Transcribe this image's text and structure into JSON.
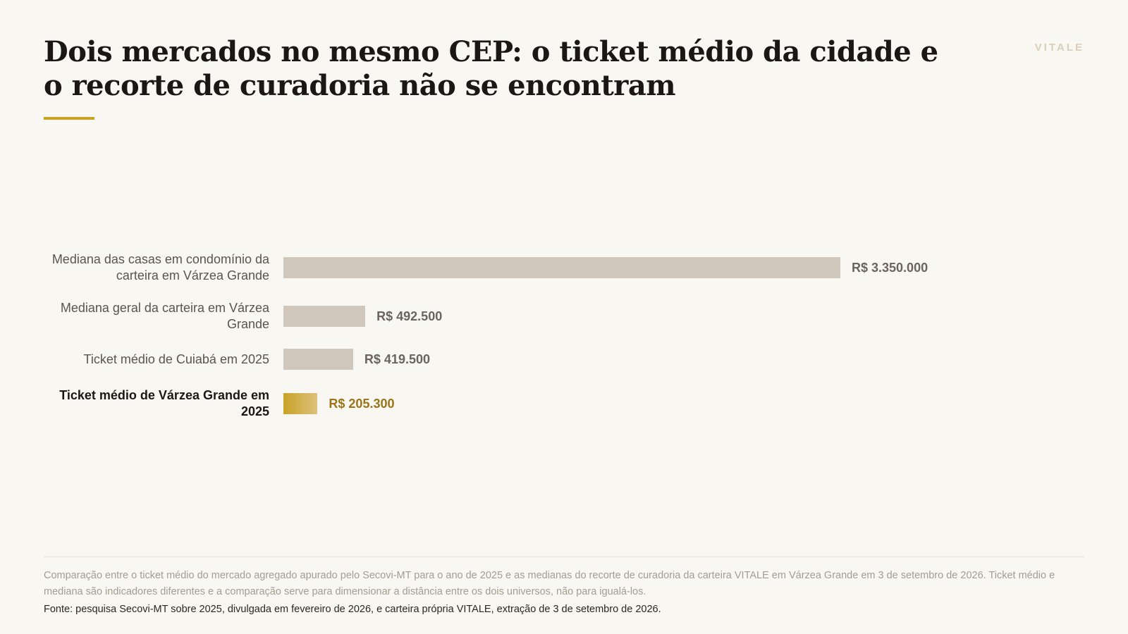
{
  "header": {
    "title": "Dois mercados no mesmo CEP: o ticket médio da cidade e o recorte de curadoria não se encontram",
    "brand": "VITALE",
    "accent_color": "#c9a227"
  },
  "chart_data": {
    "type": "bar",
    "orientation": "horizontal",
    "categories": [
      "Mediana das casas em condomínio da carteira em Várzea Grande",
      "Mediana geral da carteira em Várzea Grande",
      "Ticket médio de Cuiabá em 2025",
      "Ticket médio de Várzea Grande em 2025"
    ],
    "values": [
      3350000,
      492500,
      419500,
      205300
    ],
    "value_labels": [
      "R$ 3.350.000",
      "R$ 492.500",
      "R$ 419.500",
      "R$ 205.300"
    ],
    "highlight_index": 3,
    "bar_color": "#d0c8bc",
    "highlight_color": "#c9a227",
    "grid": false
  },
  "footer": {
    "note": "Comparação entre o ticket médio do mercado agregado apurado pelo Secovi-MT para o ano de 2025 e as medianas do recorte de curadoria da carteira VITALE em Várzea Grande em 3 de setembro de 2026. Ticket médio e mediana são indicadores diferentes e a comparação serve para dimensionar a distância entre os dois universos, não para igualá-los.",
    "source": "Fonte: pesquisa Secovi-MT sobre 2025, divulgada em fevereiro de 2026, e carteira própria VITALE, extração de 3 de setembro de 2026."
  }
}
